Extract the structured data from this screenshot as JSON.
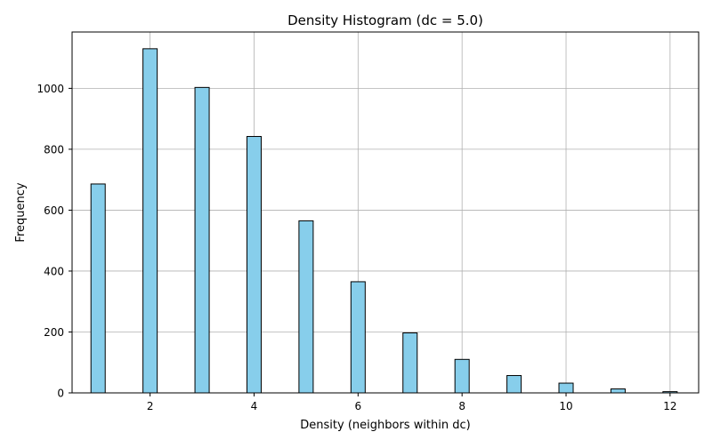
{
  "chart_data": {
    "type": "bar",
    "title": "Density Histogram (dc = 5.0)",
    "xlabel": "Density (neighbors within dc)",
    "ylabel": "Frequency",
    "x": [
      1,
      2,
      3,
      4,
      5,
      6,
      7,
      8,
      9,
      10,
      11,
      12
    ],
    "values": [
      686,
      1130,
      1003,
      842,
      565,
      365,
      197,
      110,
      57,
      32,
      13,
      4
    ],
    "xlim": [
      0.5,
      12.55
    ],
    "ylim": [
      0,
      1185
    ],
    "xticks": [
      2,
      4,
      6,
      8,
      10,
      12
    ],
    "xtick_labels": [
      "2",
      "4",
      "6",
      "8",
      "10",
      "12"
    ],
    "yticks": [
      0,
      200,
      400,
      600,
      800,
      1000
    ],
    "ytick_labels": [
      "0",
      "200",
      "400",
      "600",
      "800",
      "1000"
    ],
    "grid": true,
    "bar_color": "#87CEEB",
    "edge_color": "#000000",
    "grid_color": "#b0b0b0"
  }
}
